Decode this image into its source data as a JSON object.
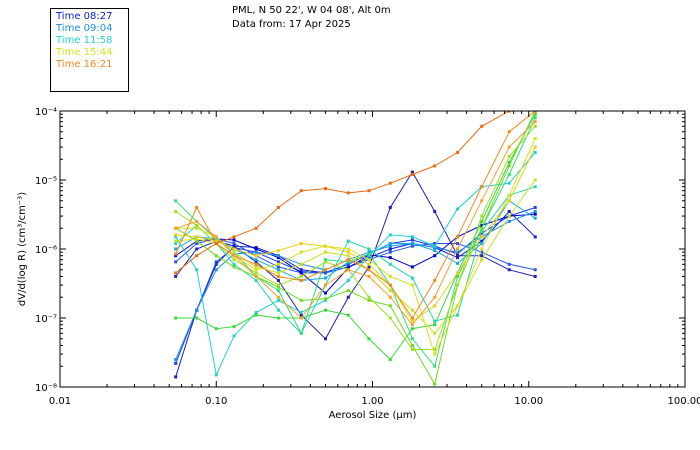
{
  "header": {
    "location": "PML, N 50 22', W 04 08', Alt 0m",
    "date_line": "Data from: 17 Apr 2025"
  },
  "legend": [
    {
      "label": "Time 08:27",
      "color": "#0a1fd6"
    },
    {
      "label": "Time 09:04",
      "color": "#1f8fe8"
    },
    {
      "label": "Time 11:58",
      "color": "#1fd1d1"
    },
    {
      "label": "Time 15:44",
      "color": "#d8e01f"
    },
    {
      "label": "Time 16:21",
      "color": "#f08a1a"
    }
  ],
  "chart_data": {
    "type": "line",
    "xscale": "log",
    "yscale": "log",
    "xlabel": "Aerosol Size (µm)",
    "ylabel": "dV/d(log R) (cm³/cm⁻³)",
    "xlim": [
      0.01,
      100
    ],
    "ylim": [
      1e-08,
      0.0001
    ],
    "xticks": [
      {
        "value": 0.01,
        "label": "0.01"
      },
      {
        "value": 0.1,
        "label": "0.10"
      },
      {
        "value": 1,
        "label": "1.00"
      },
      {
        "value": 10,
        "label": "10.00"
      },
      {
        "value": 100,
        "label": "100.00"
      }
    ],
    "yticks": [
      {
        "value": 1e-08,
        "label": "10⁻⁸"
      },
      {
        "value": 1e-07,
        "label": "10⁻⁷"
      },
      {
        "value": 1e-06,
        "label": "10⁻⁶"
      },
      {
        "value": 1e-05,
        "label": "10⁻⁵"
      },
      {
        "value": 0.0001,
        "label": "10⁻⁴"
      }
    ],
    "x": [
      0.055,
      0.075,
      0.1,
      0.13,
      0.18,
      0.25,
      0.35,
      0.5,
      0.7,
      0.95,
      1.3,
      1.8,
      2.5,
      3.5,
      5,
      7.5,
      11
    ],
    "series": [
      {
        "name": "s1",
        "color": "#0a1fd6",
        "values": [
          1.4e-08,
          1.3e-07,
          6e-07,
          1.1e-06,
          1.05e-06,
          8e-07,
          5e-07,
          4.5e-07,
          5.5e-07,
          7.5e-07,
          1e-06,
          1.2e-06,
          1.05e-06,
          7.5e-07,
          1.3e-06,
          3.5e-06,
          1.5e-06
        ]
      },
      {
        "name": "s2",
        "color": "#1a3cf0",
        "values": [
          2.2e-08,
          1.3e-07,
          6.5e-07,
          1.05e-06,
          9e-07,
          6.5e-07,
          4.7e-07,
          4.6e-07,
          6e-07,
          8.5e-07,
          1.2e-06,
          1.35e-06,
          1.1e-06,
          8.5e-07,
          1.7e-06,
          3e-06,
          4e-06
        ]
      },
      {
        "name": "s3",
        "color": "#2a56e8",
        "values": [
          6.5e-07,
          1.2e-06,
          1.4e-06,
          1.2e-06,
          8e-07,
          5.5e-07,
          4.5e-07,
          4.5e-07,
          5.5e-07,
          7e-07,
          9e-07,
          1.1e-06,
          1.2e-06,
          1.2e-06,
          9e-07,
          6e-07,
          5e-07
        ]
      },
      {
        "name": "s4",
        "color": "#0000c8",
        "values": [
          8e-07,
          1.3e-06,
          1.4e-06,
          1.35e-06,
          1e-06,
          7.5e-07,
          4.5e-07,
          2.3e-07,
          5.3e-07,
          8.2e-07,
          7.5e-07,
          5.5e-07,
          8e-07,
          1.5e-06,
          2.2e-06,
          3e-06,
          3.2e-06
        ]
      },
      {
        "name": "s5",
        "color": "#2020b0",
        "values": [
          4e-07,
          1e-06,
          1.3e-06,
          1.1e-06,
          6.5e-07,
          3.5e-07,
          1.1e-07,
          5e-08,
          2e-07,
          5.5e-07,
          4e-06,
          1.3e-05,
          3.5e-06,
          8e-07,
          8e-07,
          5e-07,
          4e-07
        ]
      },
      {
        "name": "s6",
        "color": "#1f8fe8",
        "values": [
          2.5e-08,
          1.3e-07,
          5e-07,
          8.5e-07,
          9e-07,
          8e-07,
          6e-07,
          5e-07,
          7e-07,
          9e-07,
          1.1e-06,
          1.2e-06,
          1.05e-06,
          9e-07,
          1.5e-06,
          2.5e-06,
          3.5e-06
        ]
      },
      {
        "name": "s7",
        "color": "#17a9e3",
        "values": [
          1e-06,
          1.5e-06,
          1.4e-06,
          1e-06,
          7e-07,
          5e-07,
          3.5e-07,
          3.8e-07,
          6.5e-07,
          8.5e-07,
          1.2e-06,
          1.2e-06,
          9.5e-07,
          6.2e-07,
          1.2e-06,
          5e-06,
          2.8e-06
        ]
      },
      {
        "name": "s8",
        "color": "#1fd1d1",
        "values": [
          1.5e-06,
          5e-07,
          1.5e-08,
          5.5e-08,
          1.2e-07,
          1.8e-07,
          1.2e-07,
          1.8e-07,
          3.5e-07,
          8e-07,
          1.6e-06,
          1.5e-06,
          1.1e-06,
          3.8e-06,
          8e-06,
          9e-06,
          2.5e-05
        ]
      },
      {
        "name": "s9",
        "color": "#25d4b0",
        "values": [
          1.2e-06,
          2.2e-06,
          1.2e-06,
          6e-07,
          3.5e-07,
          1.3e-07,
          6e-08,
          3e-07,
          1.3e-06,
          1e-06,
          6e-07,
          3.8e-07,
          9e-08,
          1.1e-07,
          1.8e-06,
          6e-06,
          8e-06
        ]
      },
      {
        "name": "s10",
        "color": "#2ee07a",
        "values": [
          5e-06,
          2.5e-06,
          1.4e-06,
          9e-07,
          4e-07,
          2.5e-07,
          6e-08,
          7e-07,
          6.5e-07,
          8.5e-07,
          3e-07,
          5e-08,
          2e-08,
          4e-07,
          2e-06,
          1.2e-05,
          8e-05
        ]
      },
      {
        "name": "s11",
        "color": "#3ad83a",
        "values": [
          1e-07,
          1e-07,
          7e-08,
          7.5e-08,
          1.1e-07,
          1e-07,
          1e-07,
          1.3e-07,
          1.1e-07,
          5e-08,
          2.5e-08,
          7e-08,
          8e-08,
          4.5e-07,
          2.5e-06,
          1.8e-05,
          9e-05
        ]
      },
      {
        "name": "s12",
        "color": "#6edc1e",
        "values": [
          2e-06,
          1.3e-06,
          8e-07,
          5.5e-07,
          4e-07,
          2.8e-07,
          1.8e-07,
          1.9e-07,
          2.5e-07,
          1.8e-07,
          1.5e-07,
          4e-08,
          1.1e-08,
          3e-07,
          2e-06,
          1.6e-05,
          0.0001
        ]
      },
      {
        "name": "s13",
        "color": "#9ee01e",
        "values": [
          3.5e-06,
          2.2e-06,
          1.2e-06,
          7e-07,
          4.5e-07,
          3e-07,
          4e-07,
          6.5e-07,
          5e-07,
          2e-07,
          1e-07,
          3.5e-08,
          3.5e-08,
          3e-07,
          3e-06,
          2.2e-05,
          6e-05
        ]
      },
      {
        "name": "s14",
        "color": "#c8e01f",
        "values": [
          2e-06,
          2e-06,
          1.5e-06,
          9e-07,
          5.5e-07,
          4.5e-07,
          6e-07,
          9e-07,
          8e-07,
          5e-07,
          2.5e-07,
          1.3e-07,
          6e-08,
          1.5e-07,
          7e-07,
          3e-06,
          1e-05
        ]
      },
      {
        "name": "s15",
        "color": "#d8e01f",
        "values": [
          1.3e-06,
          1.4e-06,
          1.2e-06,
          8e-07,
          5e-07,
          6e-07,
          9e-07,
          1.1e-06,
          1e-06,
          7e-07,
          4e-07,
          3e-07,
          3e-08,
          1.5e-07,
          1e-06,
          6e-06,
          4e-05
        ]
      },
      {
        "name": "s16",
        "color": "#e8d01a",
        "values": [
          1.6e-06,
          1.5e-06,
          1.3e-06,
          1e-06,
          8e-07,
          9.5e-07,
          1.2e-06,
          1.1e-06,
          9e-07,
          6e-07,
          3e-07,
          9e-08,
          1.5e-07,
          4.5e-07,
          1.5e-06,
          5e-06,
          3e-05
        ]
      },
      {
        "name": "s17",
        "color": "#f08a1a",
        "values": [
          8.5e-07,
          4e-06,
          1.2e-06,
          8e-07,
          6e-07,
          4e-07,
          3.5e-07,
          5e-07,
          7e-07,
          5e-07,
          3e-07,
          1e-07,
          3.5e-07,
          1.5e-06,
          8e-06,
          5e-05,
          0.0001
        ]
      },
      {
        "name": "s18",
        "color": "#ec6a12",
        "values": [
          4.5e-07,
          8e-07,
          1.2e-06,
          1.5e-06,
          2e-06,
          4e-06,
          7e-06,
          7.5e-06,
          6.5e-06,
          7e-06,
          9e-06,
          1.2e-05,
          1.6e-05,
          2.5e-05,
          6e-05,
          0.0001,
          0.0001
        ]
      },
      {
        "name": "s19",
        "color": "#f5a030",
        "values": [
          2e-06,
          2.5e-06,
          1.5e-06,
          8e-07,
          4e-07,
          2e-07,
          1e-07,
          3e-07,
          5e-07,
          4e-07,
          2e-07,
          8e-08,
          2e-07,
          1e-06,
          5e-06,
          3e-05,
          7e-05
        ]
      }
    ]
  }
}
